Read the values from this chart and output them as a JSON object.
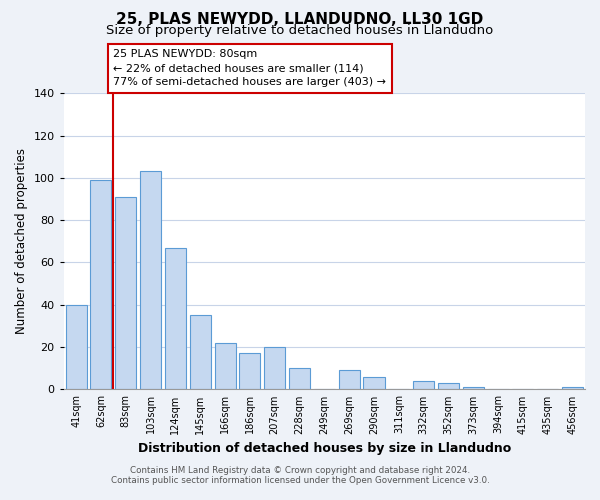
{
  "title": "25, PLAS NEWYDD, LLANDUDNO, LL30 1GD",
  "subtitle": "Size of property relative to detached houses in Llandudno",
  "xlabel": "Distribution of detached houses by size in Llandudno",
  "ylabel": "Number of detached properties",
  "bar_labels": [
    "41sqm",
    "62sqm",
    "83sqm",
    "103sqm",
    "124sqm",
    "145sqm",
    "166sqm",
    "186sqm",
    "207sqm",
    "228sqm",
    "249sqm",
    "269sqm",
    "290sqm",
    "311sqm",
    "332sqm",
    "352sqm",
    "373sqm",
    "394sqm",
    "415sqm",
    "435sqm",
    "456sqm"
  ],
  "bar_values": [
    40,
    99,
    91,
    103,
    67,
    35,
    22,
    17,
    20,
    10,
    0,
    9,
    6,
    0,
    4,
    3,
    1,
    0,
    0,
    0,
    1
  ],
  "bar_fill_color": "#c5d8f0",
  "bar_edge_color": "#5b9bd5",
  "vline_color": "#cc0000",
  "annotation_title": "25 PLAS NEWYDD: 80sqm",
  "annotation_line1": "← 22% of detached houses are smaller (114)",
  "annotation_line2": "77% of semi-detached houses are larger (403) →",
  "annotation_box_color": "#ffffff",
  "annotation_box_edge": "#cc0000",
  "ylim": [
    0,
    140
  ],
  "yticks": [
    0,
    20,
    40,
    60,
    80,
    100,
    120,
    140
  ],
  "footer_line1": "Contains HM Land Registry data © Crown copyright and database right 2024.",
  "footer_line2": "Contains public sector information licensed under the Open Government Licence v3.0.",
  "bg_color": "#eef2f8",
  "plot_bg_color": "#ffffff",
  "grid_color": "#c8d4e8",
  "title_fontsize": 11,
  "subtitle_fontsize": 9.5,
  "xlabel_fontsize": 9,
  "ylabel_fontsize": 8.5
}
